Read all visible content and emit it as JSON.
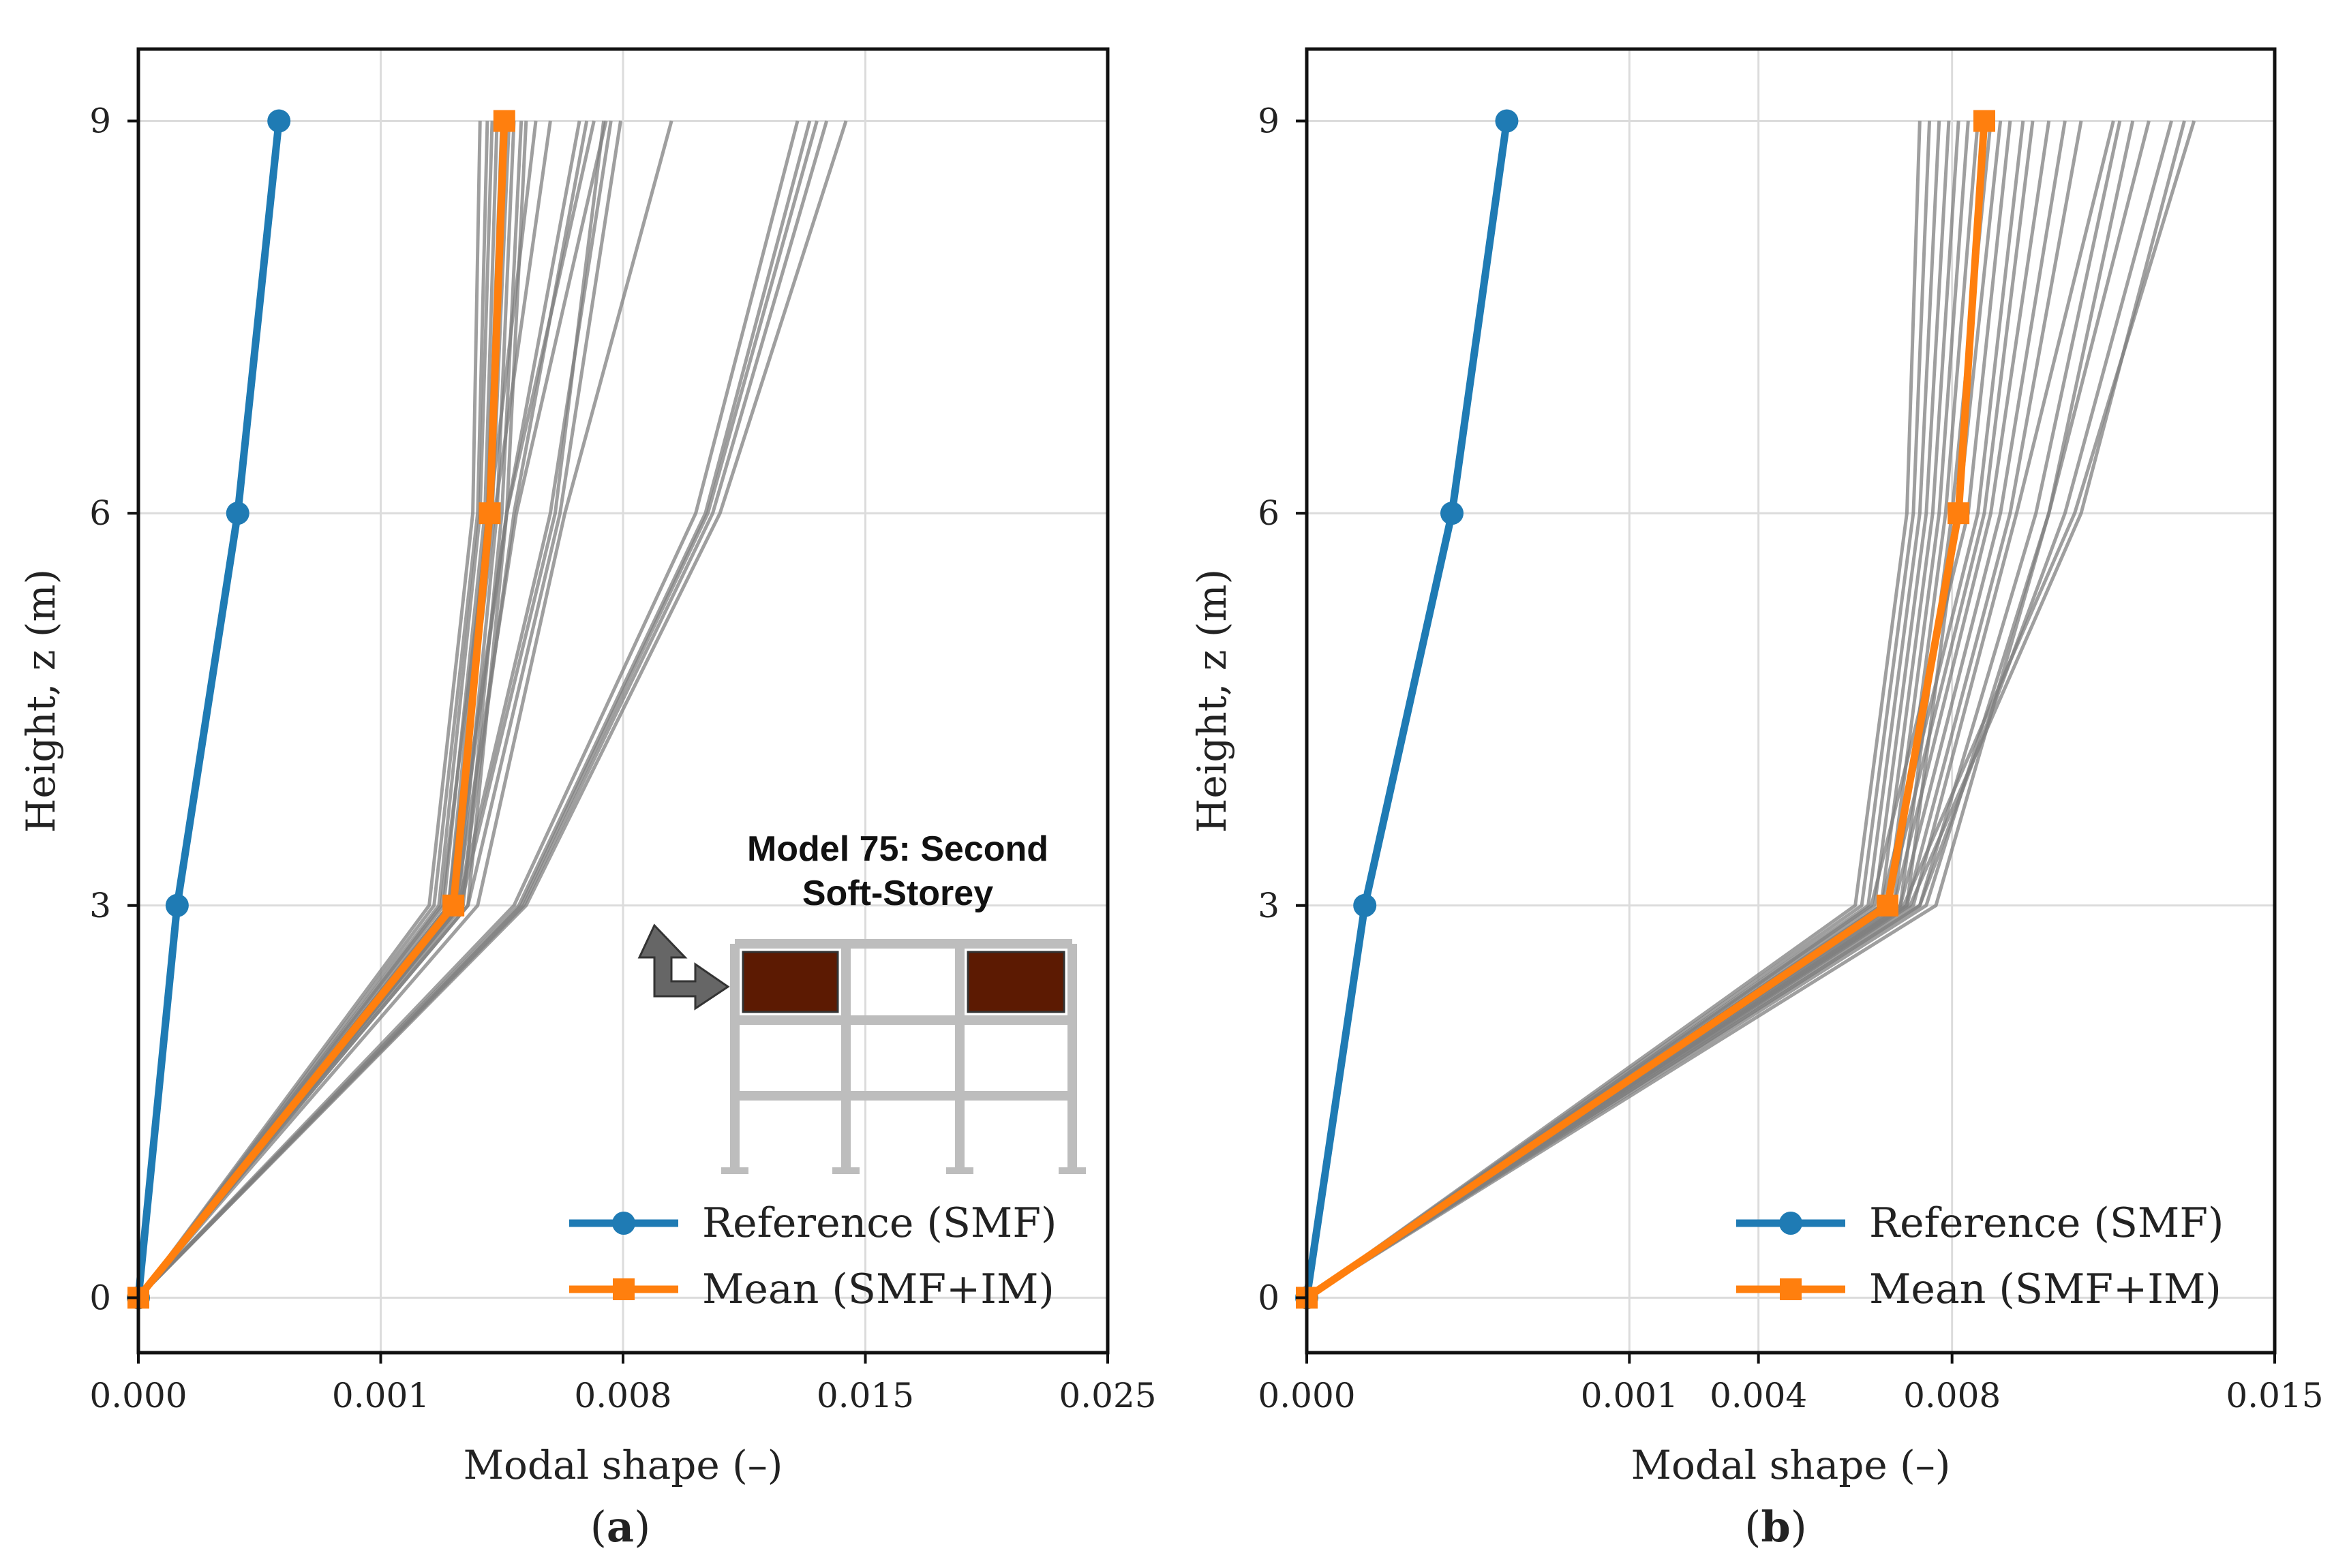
{
  "colors": {
    "reference": "#1f7bb4",
    "mean": "#ff7f0e",
    "ensemble": "#7f7f7f",
    "grid": "#dcdcdc",
    "infill": "#5c1a02",
    "frame": "#bdbdbd",
    "arrow": "#666666"
  },
  "chart_data": [
    {
      "panel_label": "a",
      "type": "line",
      "xlabel": "Modal shape (–)",
      "ylabel": "Height, z (m)",
      "xticks": [
        {
          "label": "0.000",
          "slot": 0
        },
        {
          "label": "0.001",
          "slot": 1
        },
        {
          "label": "0.008",
          "slot": 2
        },
        {
          "label": "0.015",
          "slot": 3
        },
        {
          "label": "0.025",
          "slot": 4
        }
      ],
      "yticks": [
        0,
        3,
        6,
        9
      ],
      "ylim": [
        -0.42,
        9.55
      ],
      "x_axis_note": "tick labels are unevenly spaced on the original axis; slots are equally spaced",
      "legend": {
        "position": "lower right",
        "entries": [
          {
            "label": "Reference (SMF)",
            "series": "reference",
            "marker": "circle"
          },
          {
            "label": "Mean (SMF+IM)",
            "series": "mean",
            "marker": "square"
          }
        ]
      },
      "inset": {
        "title_line1": "Model  75: Second",
        "title_line2": "Soft-Storey",
        "infilled_bays": [
          1,
          3
        ]
      },
      "series": [
        {
          "name": "Reference (SMF)",
          "role": "reference",
          "z": [
            0,
            3,
            6,
            9
          ],
          "slot": [
            0,
            0.16,
            0.41,
            0.58
          ]
        },
        {
          "name": "Mean (SMF+IM)",
          "role": "mean",
          "z": [
            0,
            3,
            6,
            9
          ],
          "slot": [
            0,
            1.3,
            1.45,
            1.51
          ]
        }
      ],
      "ensemble": [
        {
          "z": [
            0,
            3,
            6,
            9
          ],
          "slot": [
            0,
            1.2,
            1.38,
            1.41
          ]
        },
        {
          "z": [
            0,
            3,
            6,
            9
          ],
          "slot": [
            0,
            1.22,
            1.4,
            1.44
          ]
        },
        {
          "z": [
            0,
            3,
            6,
            9
          ],
          "slot": [
            0,
            1.24,
            1.41,
            1.46
          ]
        },
        {
          "z": [
            0,
            3,
            6,
            9
          ],
          "slot": [
            0,
            1.26,
            1.43,
            1.48
          ]
        },
        {
          "z": [
            0,
            3,
            6,
            9
          ],
          "slot": [
            0,
            1.28,
            1.44,
            1.5
          ]
        },
        {
          "z": [
            0,
            3,
            6,
            9
          ],
          "slot": [
            0,
            1.3,
            1.46,
            1.53
          ]
        },
        {
          "z": [
            0,
            3,
            6,
            9
          ],
          "slot": [
            0,
            1.32,
            1.48,
            1.55
          ]
        },
        {
          "z": [
            0,
            3,
            6,
            9
          ],
          "slot": [
            0,
            1.34,
            1.5,
            1.58
          ]
        },
        {
          "z": [
            0,
            3,
            6,
            9
          ],
          "slot": [
            0,
            1.36,
            1.52,
            1.6
          ]
        },
        {
          "z": [
            0,
            3,
            6,
            9
          ],
          "slot": [
            0,
            1.25,
            1.45,
            1.64
          ]
        },
        {
          "z": [
            0,
            3,
            6,
            9
          ],
          "slot": [
            0,
            1.28,
            1.47,
            1.7
          ]
        },
        {
          "z": [
            0,
            3,
            6,
            9
          ],
          "slot": [
            0,
            1.3,
            1.52,
            1.82
          ]
        },
        {
          "z": [
            0,
            3,
            6,
            9
          ],
          "slot": [
            0,
            1.33,
            1.55,
            1.85
          ]
        },
        {
          "z": [
            0,
            3,
            6,
            9
          ],
          "slot": [
            0,
            1.29,
            1.52,
            1.88
          ]
        },
        {
          "z": [
            0,
            3,
            6,
            9
          ],
          "slot": [
            0,
            1.31,
            1.56,
            1.93
          ]
        },
        {
          "z": [
            0,
            3,
            6,
            9
          ],
          "slot": [
            0,
            1.33,
            1.72,
            1.92
          ]
        },
        {
          "z": [
            0,
            3,
            6,
            9
          ],
          "slot": [
            0,
            1.32,
            1.7,
            1.95
          ]
        },
        {
          "z": [
            0,
            3,
            6,
            9
          ],
          "slot": [
            0,
            1.36,
            1.74,
            1.99
          ]
        },
        {
          "z": [
            0,
            3,
            6,
            9
          ],
          "slot": [
            0,
            1.4,
            1.76,
            2.2
          ]
        },
        {
          "z": [
            0,
            3,
            6,
            9
          ],
          "slot": [
            0,
            1.55,
            2.3,
            2.72
          ]
        },
        {
          "z": [
            0,
            3,
            6,
            9
          ],
          "slot": [
            0,
            1.57,
            2.34,
            2.77
          ]
        },
        {
          "z": [
            0,
            3,
            6,
            9
          ],
          "slot": [
            0,
            1.58,
            2.35,
            2.8
          ]
        },
        {
          "z": [
            0,
            3,
            6,
            9
          ],
          "slot": [
            0,
            1.59,
            2.37,
            2.84
          ]
        },
        {
          "z": [
            0,
            3,
            6,
            9
          ],
          "slot": [
            0,
            1.6,
            2.4,
            2.92
          ]
        }
      ]
    },
    {
      "panel_label": "b",
      "type": "line",
      "xlabel": "Modal shape (–)",
      "ylabel": "Height, z (m)",
      "xticks": [
        {
          "label": "0.000",
          "slot": 0
        },
        {
          "label": "0.001",
          "slot": 1
        },
        {
          "label": "0.004",
          "slot": 1.4
        },
        {
          "label": "0.008",
          "slot": 2
        },
        {
          "label": "0.015",
          "slot": 3
        }
      ],
      "yticks": [
        0,
        3,
        6,
        9
      ],
      "ylim": [
        -0.42,
        9.55
      ],
      "x_axis_note": "tick labels are unevenly spaced on the original axis; slots are positional",
      "legend": {
        "position": "lower right",
        "entries": [
          {
            "label": "Reference (SMF)",
            "series": "reference",
            "marker": "circle"
          },
          {
            "label": "Mean (SMF+IM)",
            "series": "mean",
            "marker": "square"
          }
        ]
      },
      "series": [
        {
          "name": "Reference (SMF)",
          "role": "reference",
          "z": [
            0,
            3,
            6,
            9
          ],
          "slot": [
            0,
            0.18,
            0.45,
            0.62
          ]
        },
        {
          "name": "Mean (SMF+IM)",
          "role": "mean",
          "z": [
            0,
            3,
            6,
            9
          ],
          "slot": [
            0,
            1.8,
            2.02,
            2.1
          ]
        }
      ],
      "ensemble": [
        {
          "z": [
            0,
            3,
            6,
            9
          ],
          "slot": [
            0,
            1.7,
            1.86,
            1.9
          ]
        },
        {
          "z": [
            0,
            3,
            6,
            9
          ],
          "slot": [
            0,
            1.72,
            1.88,
            1.93
          ]
        },
        {
          "z": [
            0,
            3,
            6,
            9
          ],
          "slot": [
            0,
            1.74,
            1.9,
            1.96
          ]
        },
        {
          "z": [
            0,
            3,
            6,
            9
          ],
          "slot": [
            0,
            1.76,
            1.92,
            1.99
          ]
        },
        {
          "z": [
            0,
            3,
            6,
            9
          ],
          "slot": [
            0,
            1.78,
            1.94,
            2.02
          ]
        },
        {
          "z": [
            0,
            3,
            6,
            9
          ],
          "slot": [
            0,
            1.8,
            1.96,
            2.05
          ]
        },
        {
          "z": [
            0,
            3,
            6,
            9
          ],
          "slot": [
            0,
            1.82,
            1.98,
            2.08
          ]
        },
        {
          "z": [
            0,
            3,
            6,
            9
          ],
          "slot": [
            0,
            1.84,
            2.0,
            2.12
          ]
        },
        {
          "z": [
            0,
            3,
            6,
            9
          ],
          "slot": [
            0,
            1.86,
            2.02,
            2.15
          ]
        },
        {
          "z": [
            0,
            3,
            6,
            9
          ],
          "slot": [
            0,
            1.75,
            2.05,
            2.18
          ]
        },
        {
          "z": [
            0,
            3,
            6,
            9
          ],
          "slot": [
            0,
            1.78,
            2.08,
            2.22
          ]
        },
        {
          "z": [
            0,
            3,
            6,
            9
          ],
          "slot": [
            0,
            1.8,
            2.1,
            2.25
          ]
        },
        {
          "z": [
            0,
            3,
            6,
            9
          ],
          "slot": [
            0,
            1.82,
            2.12,
            2.3
          ]
        },
        {
          "z": [
            0,
            3,
            6,
            9
          ],
          "slot": [
            0,
            1.84,
            2.15,
            2.35
          ]
        },
        {
          "z": [
            0,
            3,
            6,
            9
          ],
          "slot": [
            0,
            1.86,
            2.18,
            2.4
          ]
        },
        {
          "z": [
            0,
            3,
            6,
            9
          ],
          "slot": [
            0,
            1.88,
            2.2,
            2.5
          ]
        },
        {
          "z": [
            0,
            3,
            6,
            9
          ],
          "slot": [
            0,
            1.9,
            2.26,
            2.52
          ]
        },
        {
          "z": [
            0,
            3,
            6,
            9
          ],
          "slot": [
            0,
            1.92,
            2.3,
            2.56
          ]
        },
        {
          "z": [
            0,
            3,
            6,
            9
          ],
          "slot": [
            0,
            1.95,
            2.3,
            2.61
          ]
        },
        {
          "z": [
            0,
            3,
            6,
            9
          ],
          "slot": [
            0,
            1.9,
            2.35,
            2.68
          ]
        },
        {
          "z": [
            0,
            3,
            6,
            9
          ],
          "slot": [
            0,
            1.87,
            2.4,
            2.72
          ]
        },
        {
          "z": [
            0,
            3,
            6,
            9
          ],
          "slot": [
            0,
            1.85,
            2.38,
            2.75
          ]
        }
      ]
    }
  ]
}
